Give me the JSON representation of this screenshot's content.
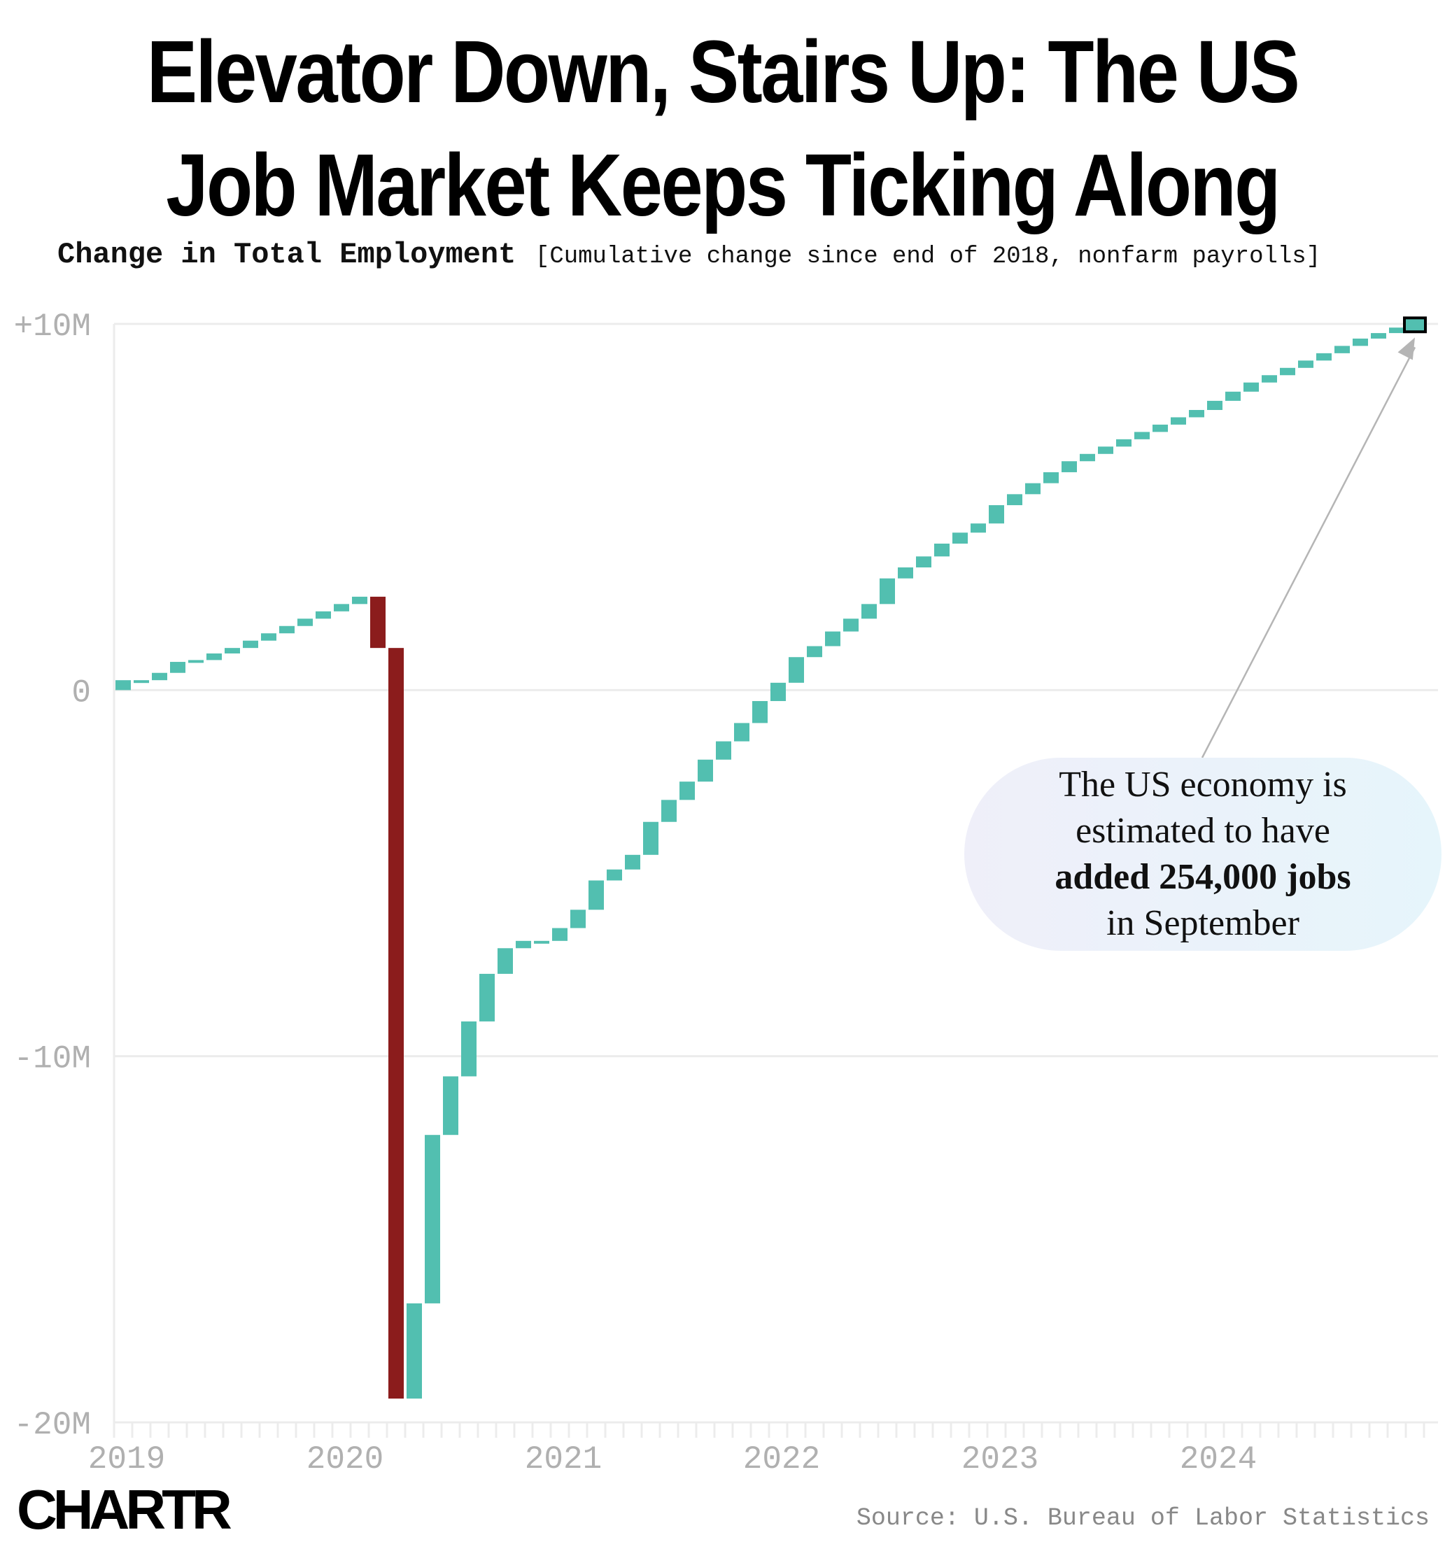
{
  "title_line1": "Elevator Down, Stairs Up: The US",
  "title_line2": "Job Market Keeps Ticking Along",
  "subtitle": "Change in Total Employment",
  "subtitle_note": "[Cumulative change since end of 2018, nonfarm payrolls]",
  "callout": {
    "line1": "The US economy is",
    "line2": "estimated to have",
    "line3": "added 254,000 jobs",
    "line4": "in September"
  },
  "logo": "CHARTR",
  "source": "Source: U.S. Bureau of Labor Statistics",
  "colors": {
    "gain": "#52bfb0",
    "loss": "#8b1c1c",
    "grid": "#ececec",
    "axis_text": "#b0b0b0"
  },
  "chart_data": {
    "type": "bar",
    "subtype": "waterfall",
    "x_start": "2019-01",
    "y_axis": {
      "ticks": [
        10,
        0,
        -10,
        -20
      ],
      "tick_labels": [
        "+10M",
        "0",
        "-10M",
        "-20M"
      ],
      "ylim": [
        -20,
        10
      ],
      "unit": "M"
    },
    "x_axis": {
      "tick_labels": [
        "2019",
        "2020",
        "2021",
        "2022",
        "2023",
        "2024"
      ]
    },
    "monthly_change_M": [
      0.27,
      0.0,
      0.2,
      0.3,
      0.05,
      0.18,
      0.15,
      0.2,
      0.2,
      0.2,
      0.2,
      0.2,
      0.2,
      0.2,
      -1.4,
      -20.5,
      2.6,
      4.6,
      1.6,
      1.5,
      1.3,
      0.7,
      0.2,
      0.0,
      0.35,
      0.5,
      0.8,
      0.3,
      0.4,
      0.9,
      0.6,
      0.5,
      0.6,
      0.5,
      0.5,
      0.6,
      0.5,
      0.7,
      0.3,
      0.4,
      0.35,
      0.4,
      0.7,
      0.3,
      0.3,
      0.35,
      0.3,
      0.25,
      0.5,
      0.3,
      0.3,
      0.3,
      0.3,
      0.2,
      0.2,
      0.2,
      0.2,
      0.2,
      0.2,
      0.2,
      0.25,
      0.25,
      0.25,
      0.2,
      0.2,
      0.2,
      0.2,
      0.2,
      0.2,
      0.15,
      0.15,
      0.15
    ],
    "highlight_last": true,
    "annotation": "The US economy is estimated to have added 254,000 jobs in September"
  }
}
